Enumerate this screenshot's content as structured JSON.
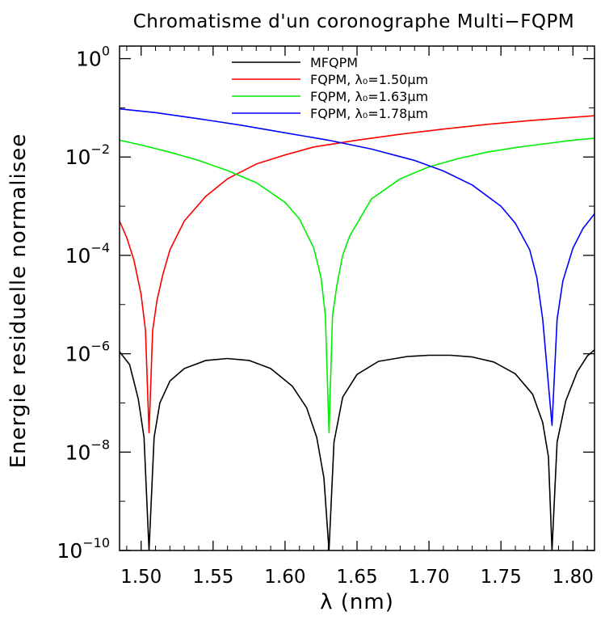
{
  "chart_data": {
    "type": "line",
    "title": "Chromatisme d'un coronographe Multi−FQPM",
    "xlabel": "λ (nm)",
    "ylabel": "Energie residuelle normalisee",
    "xlim": [
      1.485,
      1.815
    ],
    "ylim": [
      1e-10,
      1.8
    ],
    "yscale": "log",
    "grid": false,
    "legend_position": "top-center",
    "x_ticks": [
      1.5,
      1.55,
      1.6,
      1.65,
      1.7,
      1.75,
      1.8
    ],
    "x_tick_labels": [
      "1.50",
      "1.55",
      "1.60",
      "1.65",
      "1.70",
      "1.75",
      "1.80"
    ],
    "y_ticks": [
      1e-10,
      1e-08,
      1e-06,
      0.0001,
      0.01,
      1
    ],
    "y_tick_labels": [
      {
        "base": "10",
        "exp": "−10"
      },
      {
        "base": "10",
        "exp": "−8"
      },
      {
        "base": "10",
        "exp": "−6"
      },
      {
        "base": "10",
        "exp": "−4"
      },
      {
        "base": "10",
        "exp": "−2"
      },
      {
        "base": "10",
        "exp": "0"
      }
    ],
    "series": [
      {
        "name": "MFQPM",
        "color": "#000000",
        "x": [
          1.485,
          1.492,
          1.498,
          1.502,
          1.5055,
          1.509,
          1.513,
          1.52,
          1.53,
          1.545,
          1.56,
          1.575,
          1.59,
          1.605,
          1.615,
          1.622,
          1.627,
          1.6305,
          1.634,
          1.64,
          1.65,
          1.665,
          1.685,
          1.7,
          1.715,
          1.73,
          1.745,
          1.76,
          1.772,
          1.779,
          1.783,
          1.7855,
          1.789,
          1.795,
          1.803,
          1.81,
          1.815
        ],
        "y": [
          1.1e-06,
          6e-07,
          1.2e-07,
          2e-08,
          1e-10,
          2e-08,
          1e-07,
          2.8e-07,
          5e-07,
          7.3e-07,
          8e-07,
          7.3e-07,
          5e-07,
          2.2e-07,
          8e-08,
          2e-08,
          3e-09,
          1e-10,
          1.6e-08,
          1.3e-07,
          3.8e-07,
          7e-07,
          8.8e-07,
          9.3e-07,
          9.3e-07,
          8.6e-07,
          6.8e-07,
          3.9e-07,
          1.5e-07,
          4e-08,
          8e-09,
          1e-10,
          1.6e-08,
          1.1e-07,
          4.3e-07,
          9e-07,
          1.2e-06
        ]
      },
      {
        "name": "FQPM, λ₀=1.50μm",
        "color": "#ff0000",
        "x": [
          1.485,
          1.49,
          1.495,
          1.5,
          1.503,
          1.5055,
          1.508,
          1.511,
          1.515,
          1.52,
          1.53,
          1.545,
          1.56,
          1.58,
          1.6,
          1.62,
          1.65,
          1.68,
          1.71,
          1.74,
          1.77,
          1.79,
          1.815
        ],
        "y": [
          0.0005,
          0.00023,
          8e-05,
          1.6e-05,
          3e-06,
          2.5e-08,
          3e-06,
          1.2e-05,
          4e-05,
          0.00013,
          0.0005,
          0.0016,
          0.0036,
          0.0072,
          0.011,
          0.016,
          0.022,
          0.029,
          0.037,
          0.046,
          0.055,
          0.061,
          0.069
        ]
      },
      {
        "name": "FQPM, λ₀=1.63μm",
        "color": "#00ee00",
        "x": [
          1.485,
          1.5,
          1.52,
          1.54,
          1.56,
          1.58,
          1.6,
          1.61,
          1.62,
          1.625,
          1.628,
          1.6305,
          1.633,
          1.636,
          1.64,
          1.645,
          1.66,
          1.68,
          1.7,
          1.72,
          1.74,
          1.76,
          1.78,
          1.8,
          1.815
        ],
        "y": [
          0.022,
          0.0175,
          0.0125,
          0.0085,
          0.0053,
          0.003,
          0.0012,
          0.00055,
          0.00014,
          3.5e-05,
          6e-06,
          2.5e-08,
          6e-06,
          2.5e-05,
          0.0001,
          0.00025,
          0.0014,
          0.0036,
          0.0063,
          0.0092,
          0.0125,
          0.0155,
          0.0185,
          0.022,
          0.024
        ]
      },
      {
        "name": "FQPM, λ₀=1.78μm",
        "color": "#0000ff",
        "x": [
          1.485,
          1.51,
          1.54,
          1.57,
          1.6,
          1.63,
          1.66,
          1.69,
          1.71,
          1.73,
          1.75,
          1.76,
          1.77,
          1.775,
          1.779,
          1.7855,
          1.789,
          1.793,
          1.8,
          1.807,
          1.815
        ],
        "y": [
          0.095,
          0.08,
          0.06,
          0.044,
          0.031,
          0.022,
          0.0145,
          0.0085,
          0.0052,
          0.0027,
          0.001,
          0.00045,
          0.00013,
          3.5e-05,
          5e-06,
          3.5e-08,
          5e-06,
          3e-05,
          0.00014,
          0.00035,
          0.0007
        ]
      }
    ]
  }
}
